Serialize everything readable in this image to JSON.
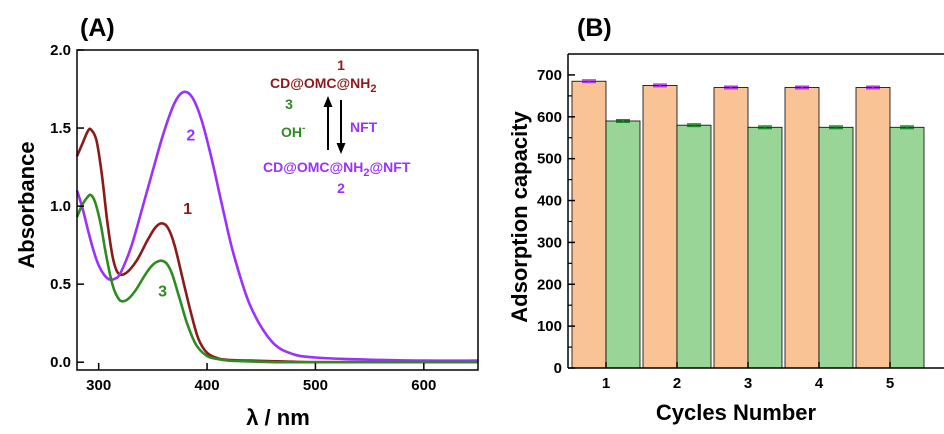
{
  "colors": {
    "curve1": "#8b1a1a",
    "curve2": "#9b30ff",
    "curve3": "#2e8b22",
    "bar_first": "#f9c396",
    "bar_second": "#99d596",
    "errbar_first": "#b03ad8",
    "errbar_second": "#1d8b2a"
  },
  "chart_data": [
    {
      "type": "line",
      "panel_label": "(A)",
      "xlabel": "λ / nm",
      "ylabel": "Absorbance",
      "xlim": [
        280,
        650
      ],
      "ylim": [
        -0.05,
        2.0
      ],
      "xticks": [
        300,
        400,
        500,
        600
      ],
      "yticks": [
        0.0,
        0.5,
        1.0,
        1.5,
        2.0
      ],
      "ytick_labels": [
        "0.0",
        "0.5",
        "1.0",
        "1.5",
        "2.0"
      ],
      "series": [
        {
          "name": "1",
          "color_key": "curve1",
          "x": [
            280,
            285,
            290,
            293,
            298,
            303,
            308,
            313,
            318,
            325,
            335,
            345,
            352,
            358,
            364,
            370,
            378,
            385,
            392,
            400,
            410,
            420,
            440,
            470,
            500,
            550,
            600,
            650
          ],
          "y": [
            1.32,
            1.4,
            1.48,
            1.49,
            1.42,
            1.2,
            0.9,
            0.67,
            0.57,
            0.57,
            0.65,
            0.78,
            0.86,
            0.89,
            0.86,
            0.75,
            0.52,
            0.32,
            0.15,
            0.06,
            0.025,
            0.015,
            0.01,
            0.005,
            0.0,
            0.0,
            0.0,
            0.0
          ]
        },
        {
          "name": "2",
          "color_key": "curve2",
          "x": [
            280,
            285,
            290,
            295,
            300,
            305,
            310,
            315,
            320,
            330,
            340,
            350,
            360,
            370,
            378,
            386,
            395,
            405,
            415,
            425,
            440,
            460,
            480,
            500,
            530,
            560,
            600,
            650
          ],
          "y": [
            1.1,
            0.99,
            0.85,
            0.72,
            0.62,
            0.56,
            0.53,
            0.535,
            0.57,
            0.74,
            0.98,
            1.23,
            1.47,
            1.66,
            1.73,
            1.7,
            1.55,
            1.28,
            0.97,
            0.68,
            0.36,
            0.13,
            0.05,
            0.03,
            0.02,
            0.015,
            0.01,
            0.01
          ]
        },
        {
          "name": "3",
          "color_key": "curve3",
          "x": [
            280,
            285,
            290,
            293,
            297,
            302,
            307,
            313,
            318,
            322,
            328,
            335,
            342,
            348,
            353,
            358,
            363,
            368,
            375,
            382,
            390,
            400,
            410,
            420,
            440,
            470,
            500,
            550,
            600,
            650
          ],
          "y": [
            0.93,
            1.01,
            1.06,
            1.07,
            1.02,
            0.88,
            0.68,
            0.49,
            0.41,
            0.39,
            0.41,
            0.47,
            0.55,
            0.61,
            0.64,
            0.65,
            0.63,
            0.56,
            0.4,
            0.24,
            0.11,
            0.04,
            0.02,
            0.01,
            0.005,
            0.0,
            0.0,
            0.0,
            0.0,
            0.0
          ]
        }
      ],
      "curve_labels": [
        {
          "text": "1",
          "x": 382,
          "y": 0.95,
          "color_key": "curve1"
        },
        {
          "text": "2",
          "x": 385,
          "y": 1.42,
          "color_key": "curve2"
        },
        {
          "text": "3",
          "x": 359,
          "y": 0.42,
          "color_key": "curve3"
        }
      ],
      "scheme": {
        "top_number": "1",
        "top_formula_main": "CD@OMC@NH",
        "top_formula_sub": "2",
        "left_number": "3",
        "left_reagent": "OH",
        "left_reagent_sup": "-",
        "right_reagent": "NFT",
        "bottom_formula_main": "CD@OMC@NH",
        "bottom_formula_sub": "2",
        "bottom_formula_tail": "@NFT",
        "bottom_number": "2"
      }
    },
    {
      "type": "bar",
      "panel_label": "(B)",
      "xlabel": "Cycles Number",
      "ylabel": "Adsorption capacity",
      "categories": [
        "1",
        "2",
        "3",
        "4",
        "5"
      ],
      "ylim": [
        0,
        750
      ],
      "yticks": [
        0,
        100,
        200,
        300,
        400,
        500,
        600,
        700
      ],
      "series": [
        {
          "color_key": "bar_first",
          "err_color_key": "errbar_first",
          "values": [
            685,
            675,
            670,
            670,
            670
          ],
          "errors": [
            3,
            3,
            3,
            3,
            3
          ]
        },
        {
          "color_key": "bar_second",
          "err_color_key": "errbar_second",
          "values": [
            590,
            580,
            575,
            575,
            575
          ],
          "errors": [
            3,
            3,
            3,
            3,
            3
          ]
        }
      ]
    }
  ]
}
